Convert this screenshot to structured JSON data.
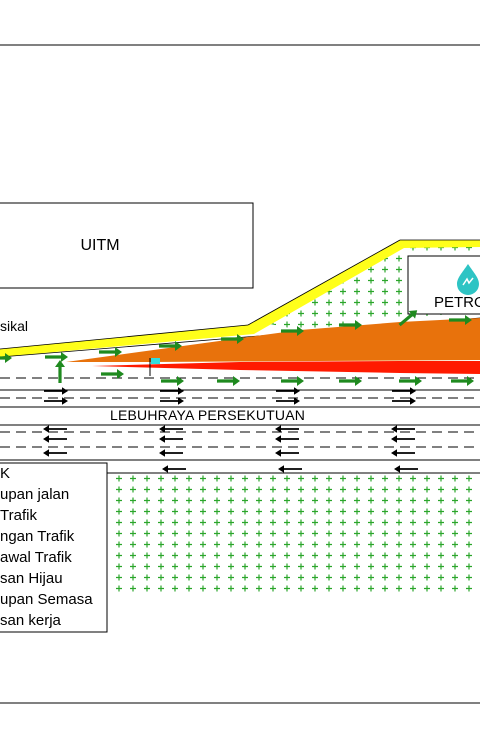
{
  "labels": {
    "building": "UITM",
    "station": "PETRO",
    "road": "LEBUHRAYA PERSEKUTUAN",
    "left_road": "sikal"
  },
  "legend": {
    "items": [
      "K",
      "upan jalan",
      " Trafik",
      "ngan Trafik",
      "awal Trafik",
      "san Hijau",
      "upan Semasa",
      "san kerja"
    ]
  },
  "colors": {
    "green_area": "#2aa52a",
    "green_arrow": "#1f8a1f",
    "yellow_shoulder": "#ffff1a",
    "orange_zone": "#e8720c",
    "red_zone": "#ff1a00",
    "station_logo": "#2ec4c4",
    "worker_flag": "#33dddd"
  },
  "icons": {
    "traffic_flow": "arrow-icon",
    "station": "droplet-icon",
    "worker": "flag-icon",
    "greenery": "plus-pattern"
  }
}
